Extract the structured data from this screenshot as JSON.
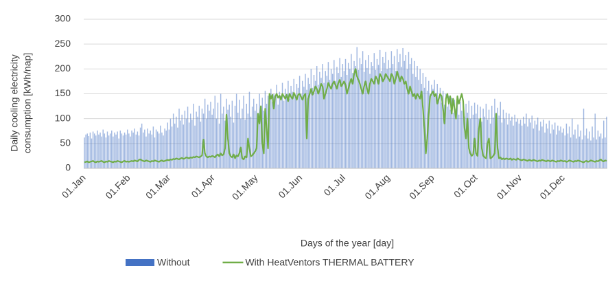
{
  "chart_data": {
    "type": "bar-line",
    "ylabel": [
      "Daily cooling electricity",
      "consumption [kWh/nap]"
    ],
    "xlabel": "Days of the year [day]",
    "ylim": [
      0,
      300
    ],
    "yticks": [
      0,
      50,
      100,
      150,
      200,
      250,
      300
    ],
    "grid": true,
    "legend": "bottom",
    "categories": [
      "01.Jan",
      null,
      null,
      null,
      null,
      null,
      null,
      null,
      null,
      null,
      null,
      null,
      null,
      null,
      null,
      null,
      null,
      null,
      null,
      null,
      null,
      null,
      null,
      null,
      null,
      null,
      null,
      null,
      null,
      null,
      null,
      "01.Feb",
      null,
      null,
      null,
      null,
      null,
      null,
      null,
      null,
      null,
      null,
      null,
      null,
      null,
      null,
      null,
      null,
      null,
      null,
      null,
      null,
      null,
      null,
      null,
      null,
      null,
      null,
      null,
      "01.Mar",
      null,
      null,
      null,
      null,
      null,
      null,
      null,
      null,
      null,
      null,
      null,
      null,
      null,
      null,
      null,
      null,
      null,
      null,
      null,
      null,
      null,
      null,
      null,
      null,
      null,
      null,
      null,
      null,
      null,
      null,
      "01.Apr",
      null,
      null,
      null,
      null,
      null,
      null,
      null,
      null,
      null,
      null,
      null,
      null,
      null,
      null,
      null,
      null,
      null,
      null,
      null,
      null,
      null,
      null,
      null,
      null,
      null,
      null,
      null,
      null,
      null,
      "01.May",
      null,
      null,
      null,
      null,
      null,
      null,
      null,
      null,
      null,
      null,
      null,
      null,
      null,
      null,
      null,
      null,
      null,
      null,
      null,
      null,
      null,
      null,
      null,
      null,
      null,
      null,
      null,
      null,
      null,
      null,
      "01.Jun",
      null,
      null,
      null,
      null,
      null,
      null,
      null,
      null,
      null,
      null,
      null,
      null,
      null,
      null,
      null,
      null,
      null,
      null,
      null,
      null,
      null,
      null,
      null,
      null,
      null,
      null,
      null,
      null,
      null,
      "01.Jul",
      null,
      null,
      null,
      null,
      null,
      null,
      null,
      null,
      null,
      null,
      null,
      null,
      null,
      null,
      null,
      null,
      null,
      null,
      null,
      null,
      null,
      null,
      null,
      null,
      null,
      null,
      null,
      null,
      null,
      null,
      "01.Aug",
      null,
      null,
      null,
      null,
      null,
      null,
      null,
      null,
      null,
      null,
      null,
      null,
      null,
      null,
      null,
      null,
      null,
      null,
      null,
      null,
      null,
      null,
      null,
      null,
      null,
      null,
      null,
      null,
      null,
      null,
      "01.Sep",
      null,
      null,
      null,
      null,
      null,
      null,
      null,
      null,
      null,
      null,
      null,
      null,
      null,
      null,
      null,
      null,
      null,
      null,
      null,
      null,
      null,
      null,
      null,
      null,
      null,
      null,
      null,
      null,
      null,
      "01.Oct",
      null,
      null,
      null,
      null,
      null,
      null,
      null,
      null,
      null,
      null,
      null,
      null,
      null,
      null,
      null,
      null,
      null,
      null,
      null,
      null,
      null,
      null,
      null,
      null,
      null,
      null,
      null,
      null,
      null,
      null,
      "01.Nov",
      null,
      null,
      null,
      null,
      null,
      null,
      null,
      null,
      null,
      null,
      null,
      null,
      null,
      null,
      null,
      null,
      null,
      null,
      null,
      null,
      null,
      null,
      null,
      null,
      null,
      null,
      null,
      null,
      null,
      "01.Dec",
      null,
      null,
      null,
      null,
      null,
      null,
      null,
      null,
      null,
      null,
      null,
      null,
      null,
      null,
      null,
      null,
      null,
      null,
      null,
      null,
      null,
      null,
      null,
      null,
      null,
      null,
      null,
      null,
      null,
      null
    ],
    "series": [
      {
        "name": "Without",
        "type": "bar",
        "color": "#4472c4",
        "values": [
          62,
          68,
          70,
          65,
          72,
          60,
          74,
          70,
          66,
          76,
          68,
          72,
          64,
          78,
          70,
          62,
          74,
          66,
          70,
          76,
          64,
          72,
          68,
          74,
          60,
          76,
          70,
          66,
          72,
          68,
          78,
          70,
          64,
          76,
          72,
          80,
          68,
          74,
          66,
          82,
          90,
          72,
          78,
          64,
          80,
          70,
          76,
          68,
          84,
          62,
          78,
          74,
          70,
          86,
          72,
          66,
          80,
          76,
          92,
          78,
          100,
          84,
          110,
          90,
          104,
          82,
          120,
          96,
          108,
          88,
          116,
          100,
          124,
          92,
          110,
          98,
          130,
          86,
          114,
          104,
          126,
          94,
          120,
          110,
          140,
          100,
          128,
          116,
          134,
          108,
          120,
          146,
          100,
          132,
          90,
          150,
          110,
          124,
          96,
          140,
          118,
          128,
          104,
          136,
          92,
          126,
          150,
          112,
          138,
          100,
          120,
          146,
          98,
          130,
          110,
          154,
          104,
          124,
          140,
          116,
          130,
          108,
          150,
          124,
          142,
          116,
          156,
          130,
          146,
          122,
          160,
          134,
          150,
          140,
          168,
          128,
          154,
          146,
          172,
          136,
          160,
          150,
          176,
          140,
          166,
          154,
          180,
          146,
          170,
          162,
          186,
          150,
          176,
          164,
          190,
          158,
          182,
          170,
          200,
          162,
          188,
          176,
          206,
          168,
          194,
          182,
          210,
          172,
          196,
          186,
          214,
          178,
          200,
          190,
          218,
          176,
          204,
          192,
          222,
          184,
          210,
          196,
          220,
          188,
          212,
          200,
          230,
          192,
          216,
          206,
          244,
          198,
          222,
          210,
          236,
          194,
          218,
          202,
          228,
          190,
          214,
          206,
          232,
          198,
          220,
          208,
          238,
          196,
          224,
          212,
          234,
          200,
          218,
          202,
          236,
          210,
          226,
          196,
          240,
          214,
          230,
          204,
          242,
          216,
          228,
          200,
          234,
          210,
          222,
          190,
          216,
          184,
          206,
          178,
          200,
          170,
          192,
          162,
          184,
          156,
          176,
          150,
          168,
          160,
          178,
          148,
          170,
          140,
          162,
          132,
          156,
          128,
          150,
          124,
          146,
          118,
          142,
          112,
          138,
          120,
          144,
          108,
          134,
          116,
          140,
          104,
          130,
          112,
          136,
          100,
          126,
          108,
          132,
          110,
          128,
          100,
          124,
          94,
          120,
          104,
          130,
          98,
          118,
          90,
          126,
          102,
          140,
          96,
          122,
          106,
          134,
          92,
          118,
          100,
          112,
          88,
          110,
          96,
          104,
          86,
          108,
          94,
          100,
          90,
          98,
          86,
          104,
          90,
          110,
          84,
          100,
          92,
          106,
          80,
          96,
          88,
          102,
          76,
          94,
          84,
          98,
          72,
          90,
          80,
          96,
          70,
          88,
          78,
          92,
          68,
          86,
          76,
          84,
          72,
          80,
          66,
          90,
          70,
          84,
          62,
          100,
          68,
          78,
          60,
          88,
          64,
          76,
          58,
          120,
          66,
          80,
          60,
          74,
          56,
          84,
          62,
          110,
          58,
          76,
          64,
          70,
          60,
          96,
          62,
          104
        ]
      },
      {
        "name": "With HeatVentors THERMAL BATTERY",
        "type": "line",
        "color": "#70ad47",
        "values": [
          12,
          13,
          14,
          12,
          13,
          14,
          15,
          13,
          12,
          14,
          13,
          14,
          15,
          13,
          12,
          14,
          13,
          15,
          14,
          13,
          12,
          14,
          13,
          15,
          14,
          13,
          12,
          14,
          15,
          13,
          14,
          13,
          14,
          15,
          14,
          16,
          15,
          14,
          17,
          18,
          16,
          15,
          14,
          16,
          15,
          14,
          13,
          15,
          14,
          16,
          15,
          14,
          13,
          15,
          16,
          14,
          15,
          16,
          17,
          16,
          18,
          17,
          19,
          18,
          20,
          19,
          18,
          20,
          21,
          19,
          20,
          22,
          21,
          20,
          22,
          21,
          23,
          22,
          24,
          23,
          22,
          24,
          26,
          58,
          30,
          24,
          22,
          24,
          23,
          25,
          24,
          22,
          26,
          28,
          24,
          30,
          26,
          28,
          40,
          108,
          60,
          30,
          24,
          22,
          28,
          20,
          26,
          24,
          30,
          42,
          20,
          18,
          24,
          22,
          60,
          40,
          24,
          26,
          30,
          34,
          40,
          110,
          90,
          125,
          50,
          30,
          120,
          80,
          40,
          150,
          140,
          148,
          120,
          145,
          150,
          142,
          146,
          138,
          150,
          145,
          140,
          148,
          135,
          150,
          144,
          140,
          152,
          146,
          138,
          148,
          150,
          144,
          138,
          146,
          150,
          60,
          140,
          150,
          160,
          148,
          155,
          165,
          160,
          150,
          158,
          170,
          165,
          140,
          150,
          160,
          172,
          165,
          160,
          170,
          175,
          168,
          160,
          172,
          178,
          165,
          170,
          175,
          168,
          150,
          160,
          172,
          180,
          170,
          190,
          200,
          185,
          178,
          170,
          160,
          150,
          165,
          175,
          160,
          150,
          170,
          180,
          175,
          170,
          185,
          180,
          170,
          190,
          185,
          175,
          180,
          190,
          185,
          180,
          175,
          190,
          185,
          170,
          180,
          195,
          185,
          175,
          185,
          180,
          170,
          175,
          160,
          150,
          165,
          155,
          145,
          150,
          140,
          150,
          145,
          140,
          155,
          120,
          80,
          30,
          60,
          110,
          145,
          150,
          155,
          145,
          150,
          130,
          140,
          150,
          145,
          120,
          90,
          140,
          150,
          130,
          145,
          110,
          140,
          120,
          100,
          145,
          130,
          140,
          150,
          135,
          80,
          60,
          100,
          40,
          30,
          25,
          28,
          60,
          30,
          25,
          80,
          100,
          40,
          25,
          22,
          20,
          50,
          60,
          20,
          22,
          25,
          30,
          110,
          40,
          20,
          22,
          18,
          20,
          18,
          20,
          19,
          18,
          20,
          17,
          19,
          18,
          17,
          20,
          18,
          17,
          16,
          18,
          17,
          16,
          15,
          17,
          16,
          15,
          17,
          16,
          15,
          14,
          16,
          15,
          17,
          16,
          15,
          14,
          16,
          15,
          14,
          16,
          15,
          14,
          13,
          15,
          14,
          16,
          15,
          14,
          15,
          13,
          14,
          16,
          15,
          14,
          13,
          15,
          14,
          16,
          15,
          14,
          13,
          12,
          14,
          15,
          13,
          14,
          16,
          15,
          14,
          13,
          15,
          14,
          16,
          18,
          15,
          14,
          16,
          15
        ]
      }
    ]
  }
}
